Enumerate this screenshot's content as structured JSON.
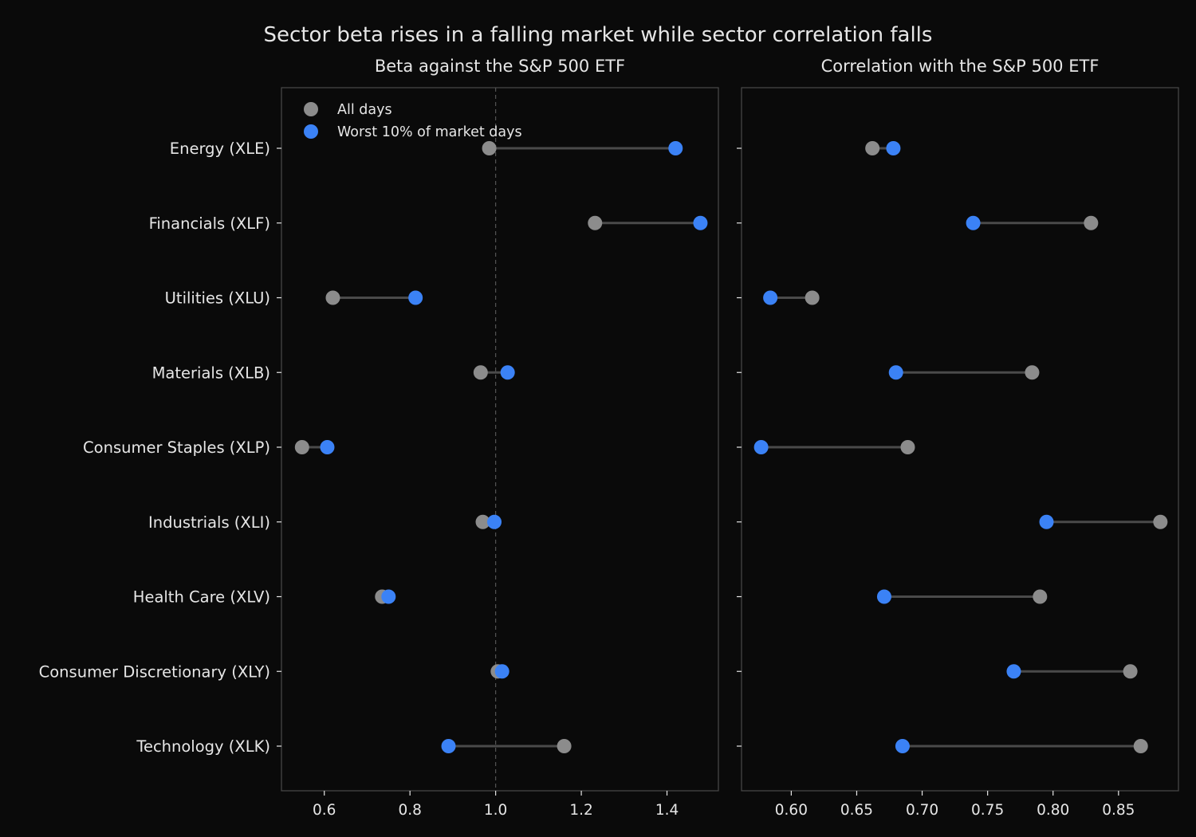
{
  "chart_data": {
    "type": "dumbbell",
    "title": "Sector beta rises in a falling market while sector correlation falls",
    "categories": [
      "Energy (XLE)",
      "Financials (XLF)",
      "Utilities (XLU)",
      "Materials (XLB)",
      "Consumer Staples (XLP)",
      "Industrials (XLI)",
      "Health Care (XLV)",
      "Consumer Discretionary (XLY)",
      "Technology (XLK)"
    ],
    "legend": {
      "placement": "top-left",
      "entries": [
        {
          "label": "All days",
          "color": "#8c8c8c"
        },
        {
          "label": "Worst 10% of market days",
          "color": "#3b82f6"
        }
      ]
    },
    "panels": [
      {
        "subtitle": "Beta against the S&P 500 ETF",
        "xlim": [
          0.5,
          1.52
        ],
        "xticks": [
          0.6,
          0.8,
          1.0,
          1.2,
          1.4
        ],
        "xtick_labels": [
          "0.6",
          "0.8",
          "1.0",
          "1.2",
          "1.4"
        ],
        "reference_line": 1.0,
        "series": [
          {
            "name": "All days",
            "values": [
              0.985,
              1.232,
              0.62,
              0.965,
              0.548,
              0.97,
              0.735,
              1.005,
              1.16
            ]
          },
          {
            "name": "Worst 10% of market days",
            "values": [
              1.42,
              1.478,
              0.813,
              1.028,
              0.607,
              0.997,
              0.75,
              1.015,
              0.89
            ]
          }
        ]
      },
      {
        "subtitle": "Correlation with the S&P 500 ETF",
        "xlim": [
          0.562,
          0.8958
        ],
        "xticks": [
          0.6,
          0.65,
          0.7,
          0.75,
          0.8,
          0.85
        ],
        "xtick_labels": [
          "0.60",
          "0.65",
          "0.70",
          "0.75",
          "0.80",
          "0.85"
        ],
        "reference_line": null,
        "series": [
          {
            "name": "All days",
            "values": [
              0.662,
              0.829,
              0.616,
              0.784,
              0.689,
              0.882,
              0.79,
              0.859,
              0.867
            ]
          },
          {
            "name": "Worst 10% of market days",
            "values": [
              0.678,
              0.739,
              0.584,
              0.68,
              0.577,
              0.795,
              0.671,
              0.77,
              0.685
            ]
          }
        ]
      }
    ]
  }
}
